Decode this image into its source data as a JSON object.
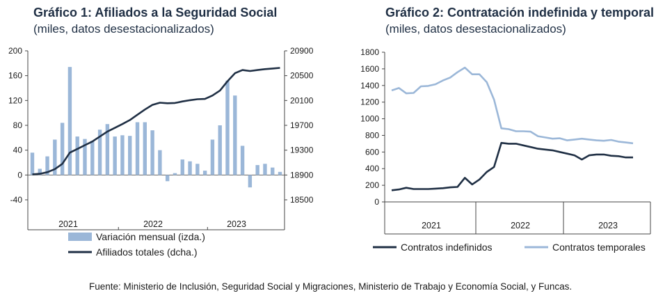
{
  "charts": [
    {
      "type": "bar+line",
      "title": "Gráfico 1: Afiliados a la Seguridad Social",
      "subtitle": "(miles, datos desestacionalizados)",
      "y_left": {
        "ticks": [
          200,
          160,
          120,
          80,
          40,
          0,
          -40
        ],
        "lim": [
          -40,
          200
        ]
      },
      "y_right": {
        "ticks": [
          20900,
          20500,
          20100,
          19700,
          19300,
          18900,
          18500
        ],
        "lim": [
          18500,
          20900
        ]
      },
      "year_labels": [
        "2021",
        "2022",
        "2023"
      ],
      "legend": {
        "bar": "Variación mensual (izda.)",
        "line": "Afiliados totales (dcha.)"
      },
      "bars": [
        36,
        10,
        30,
        57,
        84,
        174,
        62,
        58,
        55,
        73,
        82,
        62,
        64,
        63,
        85,
        85,
        72,
        40,
        -10,
        3,
        25,
        22,
        18,
        7,
        57,
        80,
        152,
        128,
        47,
        -20,
        16,
        18,
        12,
        5
      ],
      "line": [
        18910,
        18920,
        18945,
        18995,
        19080,
        19260,
        19320,
        19380,
        19440,
        19520,
        19600,
        19660,
        19720,
        19785,
        19870,
        19955,
        20030,
        20065,
        20055,
        20060,
        20085,
        20105,
        20120,
        20125,
        20180,
        20260,
        20410,
        20540,
        20590,
        20575,
        20590,
        20605,
        20615,
        20625
      ]
    },
    {
      "type": "line",
      "title": "Gráfico 2: Contratación indefinida y temporal",
      "subtitle": "(miles, datos desestacionalizados)",
      "y": {
        "ticks": [
          1800,
          1600,
          1400,
          1200,
          1000,
          800,
          600,
          400,
          200,
          0
        ],
        "lim": [
          0,
          1800
        ]
      },
      "year_labels": [
        "2021",
        "2022",
        "2023"
      ],
      "series": [
        {
          "name": "Contratos indefinidos",
          "color": "#1f2f44",
          "values": [
            140,
            150,
            170,
            155,
            155,
            155,
            160,
            165,
            175,
            180,
            290,
            210,
            270,
            360,
            420,
            710,
            700,
            700,
            680,
            660,
            640,
            630,
            620,
            600,
            580,
            560,
            510,
            560,
            570,
            570,
            555,
            550,
            535,
            535
          ]
        },
        {
          "name": "Contratos temporales",
          "color": "#9bb7d8",
          "values": [
            1340,
            1370,
            1305,
            1310,
            1390,
            1395,
            1415,
            1460,
            1495,
            1560,
            1615,
            1535,
            1535,
            1440,
            1230,
            885,
            875,
            850,
            850,
            845,
            790,
            775,
            760,
            765,
            740,
            750,
            760,
            750,
            740,
            735,
            745,
            725,
            715,
            705
          ]
        }
      ]
    }
  ],
  "source": "Fuente: Ministerio de Inclusión, Seguridad Social y Migraciones, Ministerio de Trabajo y Economía Social, y Funcas."
}
